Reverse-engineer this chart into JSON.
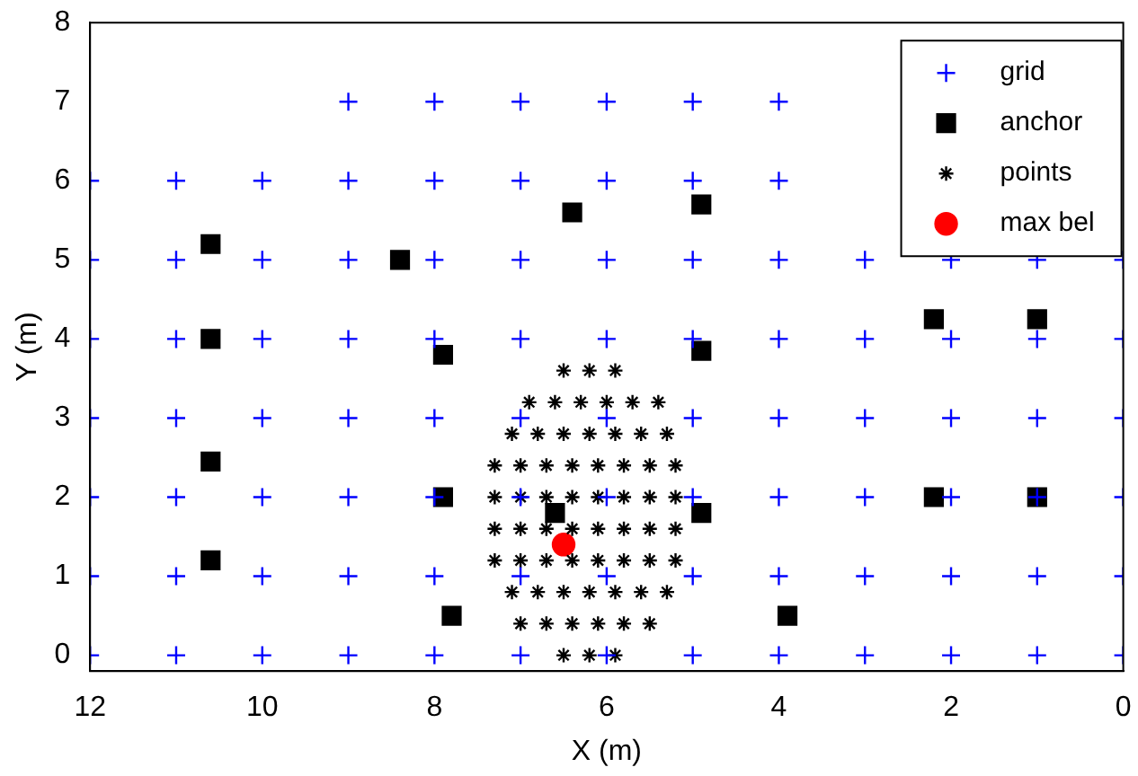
{
  "chart_data": {
    "type": "scatter",
    "xlabel": "X (m)",
    "ylabel": "Y (m)",
    "xlim": [
      12,
      0
    ],
    "xticks": [
      12,
      10,
      8,
      6,
      4,
      2,
      0
    ],
    "ylim": [
      -0.2,
      8
    ],
    "yticks": [
      0,
      1,
      2,
      3,
      4,
      5,
      6,
      7,
      8
    ],
    "legend": "top right",
    "series": [
      {
        "name": "grid",
        "color": "#0000ff",
        "marker": "cross",
        "x": [
          0,
          1,
          2,
          3,
          4,
          5,
          6,
          7,
          8,
          9,
          10,
          11,
          12,
          0,
          1,
          2,
          3,
          4,
          5,
          6,
          7,
          8,
          9,
          10,
          11,
          12,
          0,
          1,
          2,
          3,
          4,
          5,
          6,
          7,
          8,
          9,
          10,
          11,
          12,
          0,
          1,
          2,
          3,
          4,
          5,
          6,
          7,
          8,
          9,
          10,
          11,
          12,
          0,
          1,
          2,
          3,
          4,
          5,
          6,
          7,
          8,
          9,
          10,
          11,
          12,
          0,
          1,
          2,
          3,
          4,
          5,
          6,
          7,
          8,
          9,
          10,
          11,
          12,
          4,
          5,
          6,
          7,
          8,
          9,
          10,
          11,
          12,
          4,
          5,
          6,
          7,
          8,
          9
        ],
        "values": [
          0,
          0,
          0,
          0,
          0,
          0,
          0,
          0,
          0,
          0,
          0,
          0,
          0,
          1,
          1,
          1,
          1,
          1,
          1,
          1,
          1,
          1,
          1,
          1,
          1,
          1,
          2,
          2,
          2,
          2,
          2,
          2,
          2,
          2,
          2,
          2,
          2,
          2,
          2,
          3,
          3,
          3,
          3,
          3,
          3,
          3,
          3,
          3,
          3,
          3,
          3,
          3,
          4,
          4,
          4,
          4,
          4,
          4,
          4,
          4,
          4,
          4,
          4,
          4,
          4,
          5,
          5,
          5,
          5,
          5,
          5,
          5,
          5,
          5,
          5,
          5,
          5,
          5,
          6,
          6,
          6,
          6,
          6,
          6,
          6,
          6,
          6,
          7,
          7,
          7,
          7,
          7,
          7
        ]
      },
      {
        "name": "anchor",
        "color": "#000000",
        "marker": "square",
        "x": [
          10.6,
          10.6,
          10.6,
          10.6,
          8.4,
          7.9,
          7.9,
          7.8,
          6.4,
          6.6,
          4.9,
          4.9,
          4.9,
          3.9,
          2.2,
          1.0,
          2.2,
          1.0
        ],
        "values": [
          5.2,
          4.0,
          2.45,
          1.2,
          5.0,
          3.8,
          2.0,
          0.5,
          5.6,
          1.8,
          5.7,
          3.85,
          1.8,
          0.5,
          4.25,
          4.25,
          2.0,
          2.0
        ]
      },
      {
        "name": "points",
        "color": "#000000",
        "x": [
          6.5,
          6.2,
          5.9,
          7.0,
          6.7,
          6.4,
          6.1,
          5.8,
          5.5,
          7.1,
          6.8,
          6.5,
          6.2,
          5.9,
          5.6,
          5.3,
          7.3,
          7.0,
          6.7,
          6.4,
          6.1,
          5.8,
          5.5,
          5.2,
          7.3,
          7.0,
          6.7,
          6.4,
          6.1,
          5.8,
          5.5,
          5.2,
          7.3,
          7.0,
          6.7,
          6.4,
          6.1,
          5.8,
          5.5,
          5.2,
          7.3,
          7.0,
          6.7,
          6.4,
          6.1,
          5.8,
          5.5,
          5.2,
          7.1,
          6.8,
          6.5,
          6.2,
          5.9,
          5.6,
          5.3,
          6.9,
          6.6,
          6.3,
          6.0,
          5.7,
          5.4,
          6.5,
          6.2,
          5.9
        ],
        "values": [
          0,
          0,
          0,
          0.4,
          0.4,
          0.4,
          0.4,
          0.4,
          0.4,
          0.8,
          0.8,
          0.8,
          0.8,
          0.8,
          0.8,
          0.8,
          1.2,
          1.2,
          1.2,
          1.2,
          1.2,
          1.2,
          1.2,
          1.2,
          1.6,
          1.6,
          1.6,
          1.6,
          1.6,
          1.6,
          1.6,
          1.6,
          2.0,
          2.0,
          2.0,
          2.0,
          2.0,
          2.0,
          2.0,
          2.0,
          2.4,
          2.4,
          2.4,
          2.4,
          2.4,
          2.4,
          2.4,
          2.4,
          2.8,
          2.8,
          2.8,
          2.8,
          2.8,
          2.8,
          2.8,
          3.2,
          3.2,
          3.2,
          3.2,
          3.2,
          3.2,
          3.6,
          3.6,
          3.6
        ]
      },
      {
        "name": "max bel",
        "color": "#ff0000",
        "marker": "circle",
        "x": [
          6.5
        ],
        "values": [
          1.4
        ]
      }
    ]
  }
}
